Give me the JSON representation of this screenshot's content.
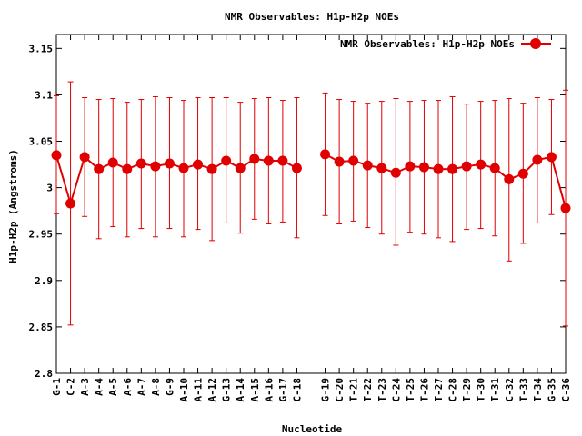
{
  "chart_data": {
    "type": "line",
    "title": "NMR Observables: H1p-H2p NOEs",
    "xlabel": "Nucleotide",
    "ylabel": "H1p-H2p (Angstroms)",
    "ylim": [
      2.8,
      3.165
    ],
    "yticks": [
      2.8,
      2.85,
      2.9,
      2.95,
      3.0,
      3.05,
      3.1,
      3.15
    ],
    "ytick_labels": [
      "2.8",
      "2.85",
      "2.9",
      "2.95",
      "3",
      "3.05",
      "3.1",
      "3.15"
    ],
    "categories": [
      "G-1",
      "C-2",
      "A-3",
      "A-4",
      "A-5",
      "A-6",
      "A-7",
      "A-8",
      "G-9",
      "A-10",
      "A-11",
      "A-12",
      "G-13",
      "A-14",
      "A-15",
      "A-16",
      "G-17",
      "C-18",
      "G-19",
      "C-20",
      "T-21",
      "T-22",
      "T-23",
      "C-24",
      "T-25",
      "T-26",
      "T-27",
      "C-28",
      "T-29",
      "T-30",
      "T-31",
      "C-32",
      "T-33",
      "T-34",
      "G-35",
      "C-36"
    ],
    "x": [
      1,
      2,
      3,
      4,
      5,
      6,
      7,
      8,
      9,
      10,
      11,
      12,
      13,
      14,
      15,
      16,
      17,
      18,
      20,
      21,
      22,
      23,
      24,
      25,
      26,
      27,
      28,
      29,
      30,
      31,
      32,
      33,
      34,
      35,
      36,
      37
    ],
    "legend_position": "top-right",
    "color": "#e00000",
    "series": [
      {
        "name": "NMR Observables: H1p-H2p NOEs",
        "values": [
          3.035,
          2.983,
          3.033,
          3.02,
          3.027,
          3.02,
          3.026,
          3.023,
          3.026,
          3.021,
          3.025,
          3.02,
          3.029,
          3.021,
          3.031,
          3.029,
          3.029,
          3.021,
          3.036,
          3.028,
          3.029,
          3.024,
          3.021,
          3.016,
          3.023,
          3.022,
          3.02,
          3.02,
          3.023,
          3.025,
          3.021,
          3.009,
          3.015,
          3.03,
          3.033,
          2.978
        ],
        "err_low": [
          2.972,
          2.852,
          2.969,
          2.945,
          2.958,
          2.947,
          2.956,
          2.947,
          2.956,
          2.947,
          2.955,
          2.943,
          2.962,
          2.951,
          2.966,
          2.961,
          2.963,
          2.946,
          2.97,
          2.961,
          2.964,
          2.957,
          2.95,
          2.938,
          2.952,
          2.95,
          2.946,
          2.942,
          2.955,
          2.956,
          2.948,
          2.921,
          2.94,
          2.962,
          2.971,
          2.851
        ],
        "err_high": [
          3.099,
          3.114,
          3.097,
          3.095,
          3.096,
          3.092,
          3.095,
          3.098,
          3.097,
          3.094,
          3.097,
          3.097,
          3.097,
          3.092,
          3.096,
          3.097,
          3.094,
          3.097,
          3.102,
          3.095,
          3.093,
          3.091,
          3.093,
          3.096,
          3.093,
          3.094,
          3.094,
          3.098,
          3.09,
          3.093,
          3.094,
          3.096,
          3.091,
          3.097,
          3.095,
          3.105
        ]
      }
    ]
  }
}
